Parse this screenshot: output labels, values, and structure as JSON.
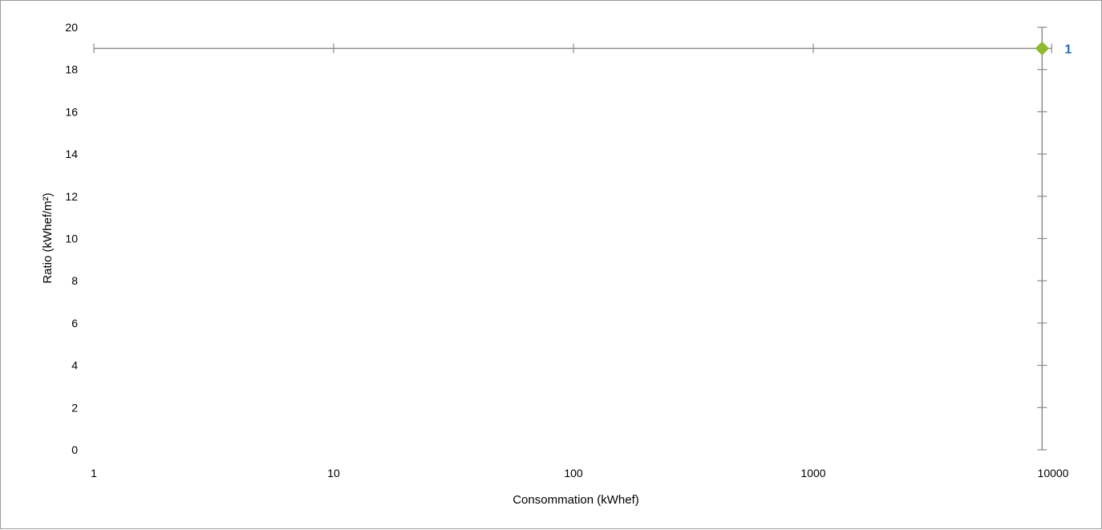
{
  "chart_data": {
    "type": "scatter",
    "title": "",
    "xlabel": "Consommation (kWhef)",
    "ylabel": "Ratio (kWhef/m²)",
    "x_scale": "log",
    "x_ticks": [
      1,
      10,
      100,
      1000,
      10000
    ],
    "x_tick_labels": [
      "1",
      "10",
      "100",
      "1000",
      "10000"
    ],
    "xlim": [
      1,
      10000
    ],
    "y_ticks": [
      0,
      2,
      4,
      6,
      8,
      10,
      12,
      14,
      16,
      18,
      20
    ],
    "y_tick_labels": [
      "0",
      "2",
      "4",
      "6",
      "8",
      "10",
      "12",
      "14",
      "16",
      "18",
      "20"
    ],
    "ylim": [
      0,
      20
    ],
    "grid": false,
    "axis_crossing": {
      "horizontal_axis_at_y": 19,
      "vertical_axis_at_x": 9000
    },
    "series": [
      {
        "points": [
          {
            "x": 9000,
            "y": 19,
            "label": "1"
          }
        ],
        "marker": "diamond",
        "color": "#8dba2f",
        "label_color": "#1f6fb7"
      }
    ],
    "axis_color": "#8c8c8c"
  }
}
